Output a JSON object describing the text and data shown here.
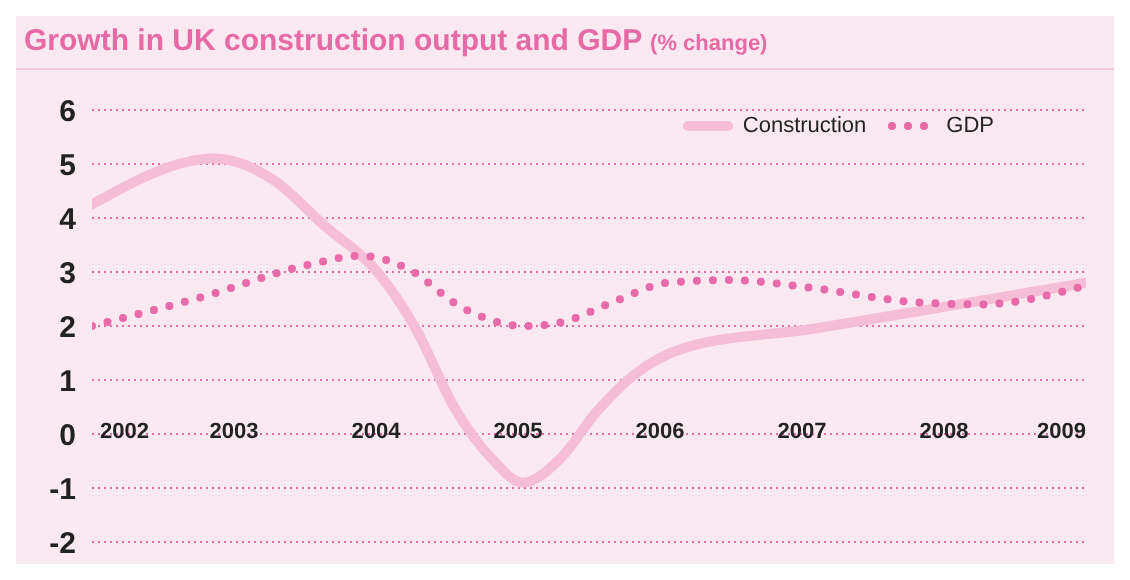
{
  "chart_data": {
    "type": "line",
    "title": "Growth in UK construction output and GDP",
    "subtitle": "(% change)",
    "xlim": [
      2002,
      2009
    ],
    "xticks": [
      2002,
      2003,
      2004,
      2005,
      2006,
      2007,
      2008,
      2009
    ],
    "ylim": [
      -2,
      6
    ],
    "yticks": [
      -2,
      -1,
      0,
      1,
      2,
      3,
      4,
      5,
      6
    ],
    "grid": "y",
    "legend": "top right",
    "marker": "none",
    "series": [
      {
        "name": "Construction",
        "color": "#f5bdd6",
        "line_style": "solid",
        "x": [
          2002,
          2002.87,
          2003.28,
          2003.64,
          2004.01,
          2004.28,
          2004.55,
          2004.83,
          2005.03,
          2005.3,
          2005.55,
          2005.82,
          2006.18,
          2007.08,
          2007.99,
          2009
        ],
        "values": [
          4.25,
          5.1,
          4.7,
          3.85,
          3.0,
          1.95,
          0.5,
          -0.5,
          -0.9,
          -0.45,
          0.4,
          1.1,
          1.6,
          1.95,
          2.35,
          2.8
        ]
      },
      {
        "name": "GDP",
        "color": "#e86aa8",
        "line_style": "dotted",
        "x": [
          2002,
          2002.79,
          2003.55,
          2003.89,
          2004.23,
          2004.6,
          2005.04,
          2005.27,
          2005.72,
          2006.05,
          2006.5,
          2007.08,
          2007.76,
          2008.26,
          2009
        ],
        "values": [
          2.0,
          2.55,
          3.15,
          3.3,
          3.05,
          2.35,
          2.0,
          2.05,
          2.5,
          2.8,
          2.85,
          2.7,
          2.45,
          2.4,
          2.75
        ]
      }
    ]
  }
}
